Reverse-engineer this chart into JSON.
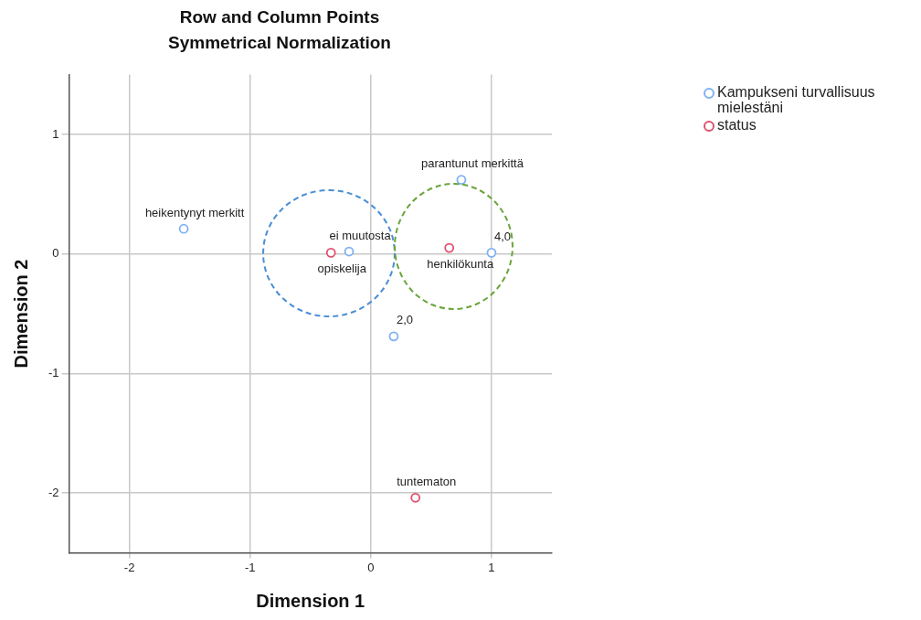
{
  "chart_data": {
    "type": "scatter",
    "title": "Row and Column Points",
    "subtitle": "Symmetrical Normalization",
    "xlabel": "Dimension 1",
    "ylabel": "Dimension 2",
    "series": [
      {
        "name": "Kampukseni turvallisuus mielestäni",
        "color": "#7fb2f0",
        "x": [
          -1.55,
          -0.18,
          0.75,
          1.0,
          0.19
        ],
        "values": [
          0.21,
          0.02,
          0.62,
          0.01,
          -0.69
        ]
      },
      {
        "name": "status",
        "color": "#e0506e",
        "x": [
          -0.33,
          0.65,
          0.37
        ],
        "values": [
          0.01,
          0.05,
          -2.04
        ]
      }
    ],
    "annotations": [
      {
        "text": "heikentynyt merkitt",
        "x": -1.55,
        "y": 0.21
      },
      {
        "text": "ei muutosta",
        "x": -0.18,
        "y": 0.02
      },
      {
        "text": "parantunut merkittä",
        "x": 0.75,
        "y": 0.62
      },
      {
        "text": "4,0",
        "x": 1.0,
        "y": 0.01
      },
      {
        "text": "2,0",
        "x": 0.19,
        "y": -0.69
      },
      {
        "text": "opiskelija",
        "x": -0.33,
        "y": 0.01
      },
      {
        "text": "henkilökunta",
        "x": 0.65,
        "y": 0.05
      },
      {
        "text": "tuntematon",
        "x": 0.37,
        "y": -2.04
      }
    ],
    "xlim": [
      -2.5,
      1.5
    ],
    "ylim": [
      -2.5,
      1.5
    ],
    "xticks": [
      -2,
      -1,
      0,
      1
    ],
    "yticks": [
      -2,
      -1,
      0,
      1
    ],
    "grid": true,
    "legend": "top right",
    "marker": "circle"
  }
}
